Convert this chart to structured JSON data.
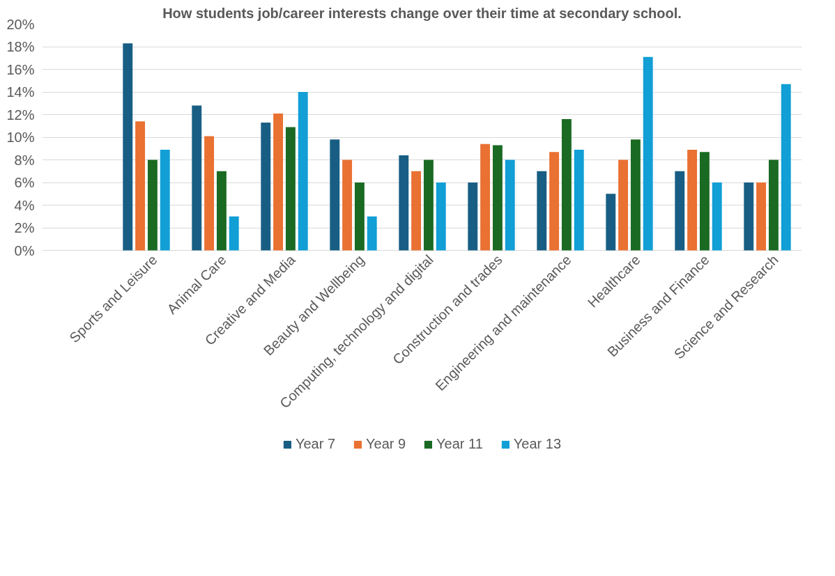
{
  "chart_data": {
    "type": "bar",
    "title": "How students job/career interests change over their time at secondary school.",
    "categories": [
      "Sports and Leisure",
      "Animal Care",
      "Creative and Media",
      "Beauty and Wellbeing",
      "Computing, technology and digital",
      "Construction and trades",
      "Engineering and maintenance",
      "Healthcare",
      "Business and Finance",
      "Science and Research"
    ],
    "series": [
      {
        "name": "Year 7",
        "color": "#185e84",
        "values": [
          18.3,
          12.8,
          11.3,
          9.8,
          8.4,
          6,
          7,
          5.0,
          7,
          6
        ]
      },
      {
        "name": "Year 9",
        "color": "#e97132",
        "values": [
          11.4,
          10.1,
          12.1,
          8,
          7,
          9.4,
          8.7,
          8,
          8.9,
          6
        ]
      },
      {
        "name": "Year 11",
        "color": "#1b6a23",
        "values": [
          8,
          7,
          10.9,
          6,
          8,
          9.3,
          11.6,
          9.8,
          8.7,
          8
        ]
      },
      {
        "name": "Year 13",
        "color": "#119fd5",
        "values": [
          8.9,
          3,
          14,
          3,
          6,
          8,
          8.9,
          17.1,
          6,
          14.7
        ]
      }
    ],
    "ylim": [
      0,
      20
    ],
    "yticks": [
      {
        "value": 0,
        "label": "0%"
      },
      {
        "value": 2,
        "label": "2%"
      },
      {
        "value": 4,
        "label": "4%"
      },
      {
        "value": 6,
        "label": "6%"
      },
      {
        "value": 8,
        "label": "8%"
      },
      {
        "value": 10,
        "label": "10%"
      },
      {
        "value": 12,
        "label": "12%"
      },
      {
        "value": 14,
        "label": "14%"
      },
      {
        "value": 16,
        "label": "16%"
      },
      {
        "value": 18,
        "label": "18%"
      },
      {
        "value": 20,
        "label": "20%"
      }
    ],
    "grid": "y",
    "legend": "bottom"
  }
}
